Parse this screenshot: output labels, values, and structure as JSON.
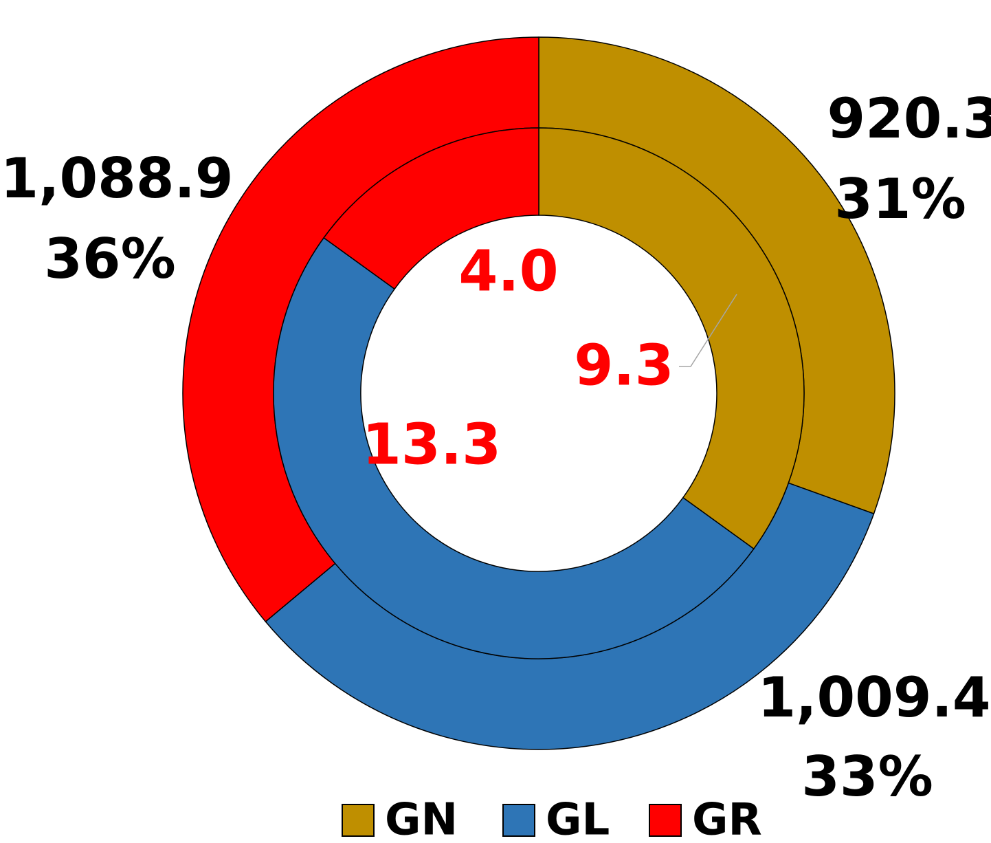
{
  "chart_data": {
    "type": "double-donut",
    "categories": [
      "GN",
      "GL",
      "GR"
    ],
    "colors": [
      "#bf8f00",
      "#2e75b6",
      "#ff0000"
    ],
    "series": [
      {
        "values": [
          920.3,
          1009.4,
          1088.9
        ],
        "value_labels": [
          "920.3",
          "1,009.4",
          "1,088.9"
        ],
        "percentages": [
          31,
          33,
          36
        ],
        "percentage_labels": [
          "31%",
          "33%",
          "36%"
        ]
      },
      {
        "values": [
          9.3,
          13.3,
          4.0
        ],
        "value_labels": [
          "9.3",
          "13.3",
          "4.0"
        ]
      }
    ],
    "legend": "bottom"
  }
}
